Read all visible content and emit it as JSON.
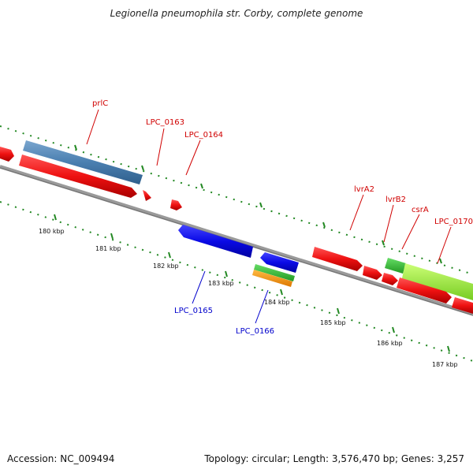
{
  "title": "Legionella pneumophila str. Corby, complete genome",
  "footer": {
    "accession": "Accession: NC_009494",
    "summary": "Topology: circular; Length: 3,576,470 bp; Genes: 3,257"
  },
  "scale_labels": [
    "180 kbp",
    "181 kbp",
    "182 kbp",
    "183 kbp",
    "184 kbp",
    "185 kbp",
    "186 kbp",
    "187 kbp"
  ],
  "genes": {
    "plrC": "prlC",
    "lpc0163": "LPC_0163",
    "lpc0164": "LPC_0164",
    "lvrA2": "lvrA2",
    "lvrB2": "lvrB2",
    "csrA": "csrA",
    "lpc0170": "LPC_0170",
    "lpc0165": "LPC_0165",
    "lpc0166": "LPC_0166"
  },
  "colors": {
    "cds_red": "#ee1111",
    "cds_blue": "#0a0ae6",
    "steel_blue": "#4a7fb0",
    "green": "#33bb33",
    "lime": "#99ee33",
    "orange": "#ff9900",
    "backbone": "#8a8a8a",
    "tick_green": "#228822"
  }
}
